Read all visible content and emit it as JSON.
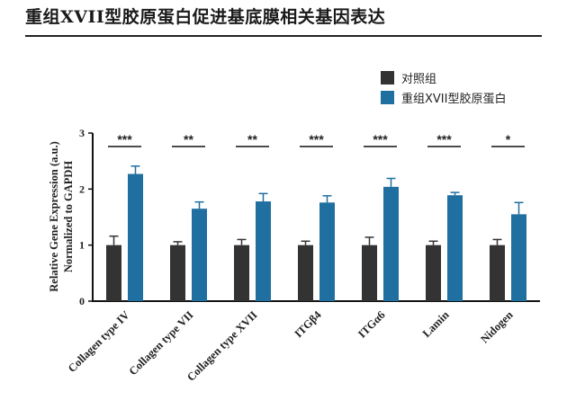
{
  "page": {
    "title": "重组XVII型胶原蛋白促进基底膜相关基因表达"
  },
  "chart_data": {
    "type": "bar",
    "ylabel": [
      "Relative Gene Expression (a.u.)",
      "Normalized to GAPDH"
    ],
    "xlabel": "",
    "ylim": [
      0,
      3
    ],
    "yticks": [
      0,
      1,
      2,
      3
    ],
    "grid": false,
    "legend_position": "top-right",
    "categories": [
      "Collagen type IV",
      "Collagen type VII",
      "Collagen type XVII",
      "ITGβ4",
      "ITGα6",
      "Lamin",
      "Nidogen"
    ],
    "series": [
      {
        "name": "对照组",
        "color": "#333333",
        "values": [
          1.0,
          1.0,
          1.0,
          1.0,
          1.0,
          1.0,
          1.0
        ],
        "errors": [
          0.16,
          0.06,
          0.1,
          0.07,
          0.14,
          0.07,
          0.1
        ]
      },
      {
        "name": "重组XVII型胶原蛋白",
        "color": "#1f6fa1",
        "values": [
          2.27,
          1.65,
          1.78,
          1.76,
          2.04,
          1.89,
          1.55
        ],
        "errors": [
          0.14,
          0.12,
          0.14,
          0.12,
          0.15,
          0.05,
          0.21
        ]
      }
    ],
    "significance": [
      "***",
      "**",
      "**",
      "***",
      "***",
      "***",
      "*"
    ]
  }
}
